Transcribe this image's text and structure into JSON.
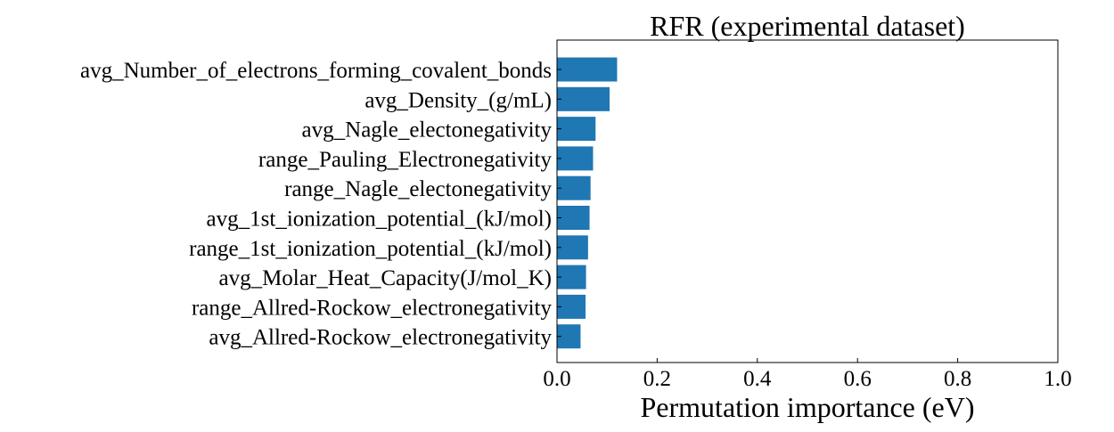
{
  "chart_data": {
    "type": "bar",
    "orientation": "horizontal",
    "title": "RFR (experimental dataset)",
    "xlabel": "Permutation importance (eV)",
    "ylabel": "",
    "xlim": [
      0.0,
      1.0
    ],
    "xticks": [
      0.0,
      0.2,
      0.4,
      0.6,
      0.8,
      1.0
    ],
    "xtick_labels": [
      "0.0",
      "0.2",
      "0.4",
      "0.6",
      "0.8",
      "1.0"
    ],
    "grid": false,
    "bar_color": "#1f77b4",
    "categories": [
      "avg_Number_of_electrons_forming_covalent_bonds",
      "avg_Density_(g/mL)",
      "avg_Nagle_electonegativity",
      "range_Pauling_Electronegativity",
      "range_Nagle_electonegativity",
      "avg_1st_ionization_potential_(kJ/mol)",
      "range_1st_ionization_potential_(kJ/mol)",
      "avg_Molar_Heat_Capacity(J/mol_K)",
      "range_Allred-Rockow_electronegativity",
      "avg_Allred-Rockow_electronegativity"
    ],
    "values": [
      0.12,
      0.105,
      0.077,
      0.072,
      0.067,
      0.065,
      0.062,
      0.058,
      0.057,
      0.047
    ]
  }
}
